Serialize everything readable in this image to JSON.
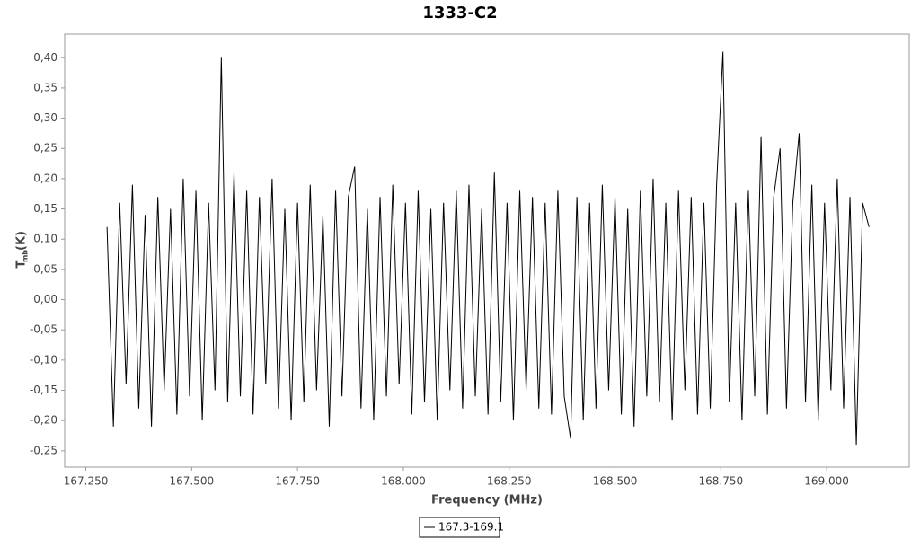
{
  "chart_data": {
    "type": "line",
    "title": "1333-C2",
    "xlabel": "Frequency (MHz)",
    "ylabel": "T",
    "ylabel_sub": "mb",
    "ylabel_unit": "(K)",
    "x": [
      167.3,
      167.315,
      167.33,
      167.345,
      167.36,
      167.375,
      167.39,
      167.405,
      167.42,
      167.435,
      167.45,
      167.465,
      167.48,
      167.495,
      167.51,
      167.525,
      167.54,
      167.555,
      167.57,
      167.585,
      167.6,
      167.615,
      167.63,
      167.645,
      167.66,
      167.675,
      167.69,
      167.705,
      167.72,
      167.735,
      167.75,
      167.765,
      167.78,
      167.795,
      167.81,
      167.825,
      167.84,
      167.855,
      167.87,
      167.885,
      167.9,
      167.915,
      167.93,
      167.945,
      167.96,
      167.975,
      167.99,
      168.005,
      168.02,
      168.035,
      168.05,
      168.065,
      168.08,
      168.095,
      168.11,
      168.125,
      168.14,
      168.155,
      168.17,
      168.185,
      168.2,
      168.215,
      168.23,
      168.245,
      168.26,
      168.275,
      168.29,
      168.305,
      168.32,
      168.335,
      168.35,
      168.365,
      168.38,
      168.395,
      168.41,
      168.425,
      168.44,
      168.455,
      168.47,
      168.485,
      168.5,
      168.515,
      168.53,
      168.545,
      168.56,
      168.575,
      168.59,
      168.605,
      168.62,
      168.635,
      168.65,
      168.665,
      168.68,
      168.695,
      168.71,
      168.725,
      168.74,
      168.755,
      168.77,
      168.785,
      168.8,
      168.815,
      168.83,
      168.845,
      168.86,
      168.875,
      168.89,
      168.905,
      168.92,
      168.935,
      168.95,
      168.965,
      168.98,
      168.995,
      169.01,
      169.025,
      169.04,
      169.055,
      169.07,
      169.085,
      169.1
    ],
    "series": [
      {
        "name": "167.3-169.1",
        "color": "#000000",
        "values": [
          0.12,
          -0.21,
          0.16,
          -0.14,
          0.19,
          -0.18,
          0.14,
          -0.21,
          0.17,
          -0.15,
          0.15,
          -0.19,
          0.2,
          -0.16,
          0.18,
          -0.2,
          0.16,
          -0.15,
          0.4,
          -0.17,
          0.21,
          -0.16,
          0.18,
          -0.19,
          0.17,
          -0.14,
          0.2,
          -0.18,
          0.15,
          -0.2,
          0.16,
          -0.17,
          0.19,
          -0.15,
          0.14,
          -0.21,
          0.18,
          -0.16,
          0.17,
          0.22,
          -0.18,
          0.15,
          -0.2,
          0.17,
          -0.16,
          0.19,
          -0.14,
          0.16,
          -0.19,
          0.18,
          -0.17,
          0.15,
          -0.2,
          0.16,
          -0.15,
          0.18,
          -0.18,
          0.19,
          -0.16,
          0.15,
          -0.19,
          0.21,
          -0.17,
          0.16,
          -0.2,
          0.18,
          -0.15,
          0.17,
          -0.18,
          0.16,
          -0.19,
          0.18,
          -0.16,
          -0.23,
          0.17,
          -0.2,
          0.16,
          -0.18,
          0.19,
          -0.15,
          0.17,
          -0.19,
          0.15,
          -0.21,
          0.18,
          -0.16,
          0.2,
          -0.17,
          0.16,
          -0.2,
          0.18,
          -0.15,
          0.17,
          -0.19,
          0.16,
          -0.18,
          0.19,
          0.41,
          -0.17,
          0.16,
          -0.2,
          0.18,
          -0.16,
          0.27,
          -0.19,
          0.17,
          0.25,
          -0.18,
          0.16,
          0.275,
          -0.17,
          0.19,
          -0.2,
          0.16,
          -0.15,
          0.2,
          -0.18,
          0.17,
          -0.24,
          0.16,
          0.12
        ]
      }
    ],
    "xlim": [
      167.2,
      169.195
    ],
    "ylim": [
      -0.277,
      0.439
    ],
    "xticks": [
      {
        "value": 167.25,
        "label": "167.250"
      },
      {
        "value": 167.5,
        "label": "167.500"
      },
      {
        "value": 167.75,
        "label": "167.750"
      },
      {
        "value": 168,
        "label": "168.000"
      },
      {
        "value": 168.25,
        "label": "168.250"
      },
      {
        "value": 168.5,
        "label": "168.500"
      },
      {
        "value": 168.75,
        "label": "168.750"
      },
      {
        "value": 169,
        "label": "169.000"
      }
    ],
    "yticks": [
      {
        "value": -0.25,
        "label": "-0,25"
      },
      {
        "value": -0.2,
        "label": "-0,20"
      },
      {
        "value": -0.15,
        "label": "-0,15"
      },
      {
        "value": -0.1,
        "label": "-0,10"
      },
      {
        "value": -0.05,
        "label": "-0,05"
      },
      {
        "value": 0,
        "label": "0,00"
      },
      {
        "value": 0.05,
        "label": "0,05"
      },
      {
        "value": 0.1,
        "label": "0,10"
      },
      {
        "value": 0.15,
        "label": "0,15"
      },
      {
        "value": 0.2,
        "label": "0,20"
      },
      {
        "value": 0.25,
        "label": "0,25"
      },
      {
        "value": 0.3,
        "label": "0,30"
      },
      {
        "value": 0.35,
        "label": "0,35"
      },
      {
        "value": 0.4,
        "label": "0,40"
      }
    ],
    "grid": false,
    "legend": "bottom"
  }
}
